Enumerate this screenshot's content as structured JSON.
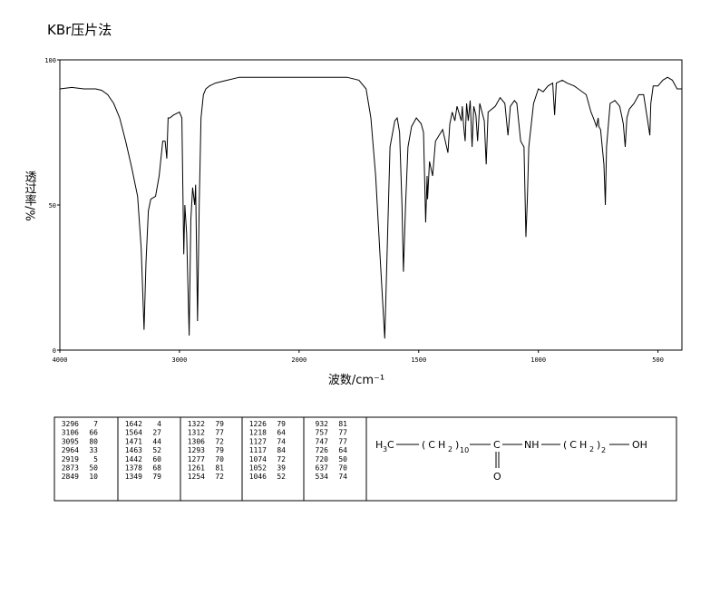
{
  "chart_data": {
    "type": "line",
    "title": "KBr压片法",
    "x_label": "波数/cm⁻¹",
    "y_label": "透过率/%",
    "color": "#000000",
    "xlim": [
      4000,
      400
    ],
    "xticks": [
      4000,
      3000,
      2000,
      1500,
      1000,
      500
    ],
    "ylim": [
      0,
      100
    ],
    "yticks": [
      0,
      50,
      100
    ],
    "grid": false,
    "x": [
      4000,
      3900,
      3800,
      3700,
      3650,
      3600,
      3550,
      3500,
      3450,
      3400,
      3350,
      3320,
      3296,
      3280,
      3260,
      3240,
      3200,
      3170,
      3140,
      3120,
      3106,
      3095,
      3080,
      3050,
      3000,
      2980,
      2964,
      2955,
      2940,
      2919,
      2905,
      2890,
      2873,
      2865,
      2849,
      2835,
      2820,
      2800,
      2780,
      2750,
      2700,
      2600,
      2500,
      2400,
      2200,
      2100,
      2000,
      1900,
      1800,
      1750,
      1720,
      1700,
      1680,
      1660,
      1642,
      1630,
      1620,
      1600,
      1590,
      1580,
      1570,
      1564,
      1555,
      1545,
      1530,
      1510,
      1490,
      1480,
      1471,
      1465,
      1463,
      1455,
      1442,
      1430,
      1400,
      1378,
      1370,
      1360,
      1349,
      1340,
      1322,
      1318,
      1312,
      1306,
      1300,
      1293,
      1285,
      1277,
      1270,
      1261,
      1254,
      1245,
      1226,
      1218,
      1210,
      1180,
      1160,
      1140,
      1127,
      1117,
      1100,
      1090,
      1074,
      1060,
      1052,
      1046,
      1040,
      1020,
      1000,
      980,
      960,
      940,
      932,
      925,
      900,
      880,
      850,
      800,
      780,
      770,
      757,
      750,
      747,
      740,
      726,
      720,
      715,
      700,
      680,
      660,
      645,
      637,
      630,
      620,
      600,
      580,
      560,
      545,
      534,
      530,
      520,
      500,
      480,
      460,
      440,
      420,
      400
    ],
    "values": [
      90,
      90.5,
      90,
      90,
      89.5,
      88,
      85,
      80,
      72,
      63,
      53,
      35,
      7,
      30,
      48,
      52,
      53,
      60,
      72,
      72,
      66,
      80,
      80,
      81,
      82,
      80,
      33,
      50,
      40,
      5,
      45,
      56,
      50,
      57,
      10,
      50,
      80,
      88,
      90,
      91,
      92,
      93,
      94,
      94,
      94,
      94,
      94,
      94,
      94,
      93,
      90,
      80,
      60,
      30,
      4,
      40,
      70,
      79,
      80,
      75,
      50,
      27,
      50,
      70,
      77,
      80,
      78,
      75,
      44,
      60,
      52,
      65,
      60,
      72,
      76,
      68,
      78,
      82,
      79,
      84,
      79,
      84,
      77,
      72,
      85,
      79,
      86,
      70,
      84,
      81,
      72,
      85,
      79,
      64,
      82,
      84,
      87,
      85,
      74,
      84,
      86,
      85,
      72,
      70,
      39,
      52,
      70,
      85,
      90,
      89,
      91,
      92,
      81,
      92,
      93,
      92,
      91,
      88,
      82,
      80,
      77,
      80,
      77,
      76,
      64,
      50,
      70,
      85,
      86,
      84,
      78,
      70,
      80,
      83,
      85,
      88,
      88,
      80,
      74,
      85,
      91,
      91,
      93,
      94,
      93,
      90,
      90
    ]
  },
  "peak_table": {
    "columns": [
      [
        [
          3296,
          7
        ],
        [
          3106,
          66
        ],
        [
          3095,
          80
        ],
        [
          2964,
          33
        ],
        [
          2919,
          5
        ],
        [
          2873,
          50
        ],
        [
          2849,
          10
        ]
      ],
      [
        [
          1642,
          4
        ],
        [
          1564,
          27
        ],
        [
          1471,
          44
        ],
        [
          1463,
          52
        ],
        [
          1442,
          60
        ],
        [
          1378,
          68
        ],
        [
          1349,
          79
        ]
      ],
      [
        [
          1322,
          79
        ],
        [
          1312,
          77
        ],
        [
          1306,
          72
        ],
        [
          1293,
          79
        ],
        [
          1277,
          70
        ],
        [
          1261,
          81
        ],
        [
          1254,
          72
        ]
      ],
      [
        [
          1226,
          79
        ],
        [
          1218,
          64
        ],
        [
          1127,
          74
        ],
        [
          1117,
          84
        ],
        [
          1074,
          72
        ],
        [
          1052,
          39
        ],
        [
          1046,
          52
        ]
      ],
      [
        [
          932,
          81
        ],
        [
          757,
          77
        ],
        [
          747,
          77
        ],
        [
          726,
          64
        ],
        [
          720,
          50
        ],
        [
          637,
          70
        ],
        [
          534,
          74
        ]
      ]
    ]
  },
  "structure": {
    "parts": [
      "H",
      "3",
      "C",
      "(CH",
      "2",
      ")",
      "10",
      "C",
      "O",
      "NH",
      "(CH",
      "2",
      ")",
      "2",
      "OH"
    ]
  }
}
